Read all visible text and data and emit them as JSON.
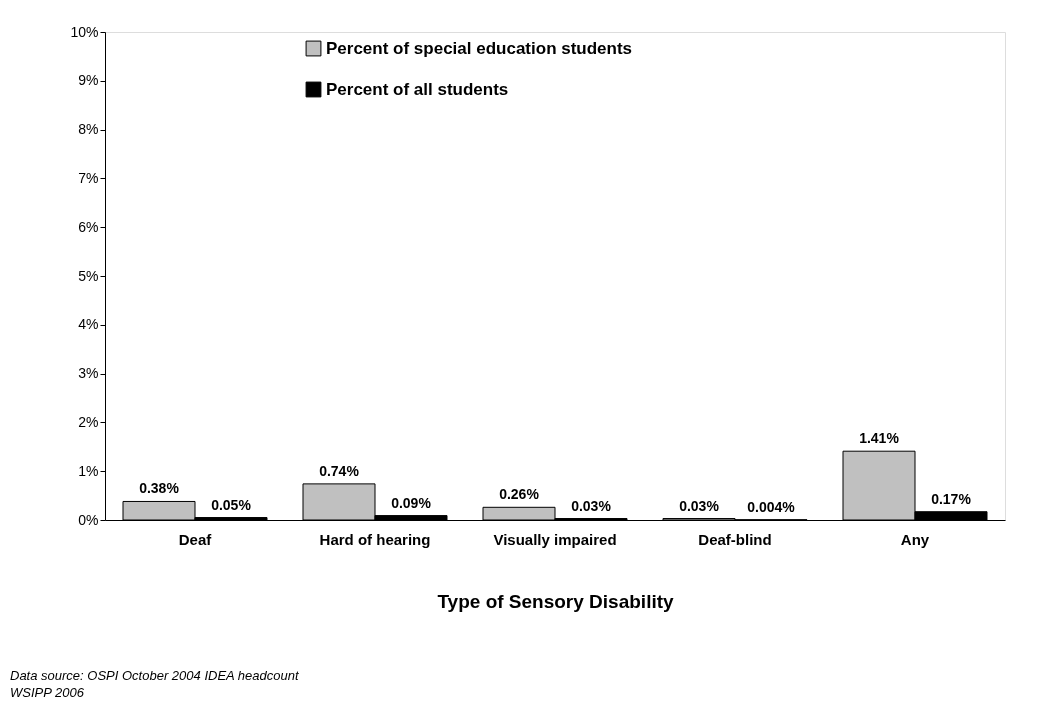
{
  "chart_data": {
    "type": "bar",
    "xlabel": "Type of Sensory Disability",
    "categories": [
      "Deaf",
      "Hard of hearing",
      "Visually impaired",
      "Deaf-blind",
      "Any"
    ],
    "series": [
      {
        "name": "Percent of special education students",
        "color": "#c0c0c0",
        "values": [
          0.38,
          0.74,
          0.26,
          0.03,
          1.41
        ],
        "value_labels": [
          "0.38%",
          "0.74%",
          "0.26%",
          "0.03%",
          "1.41%"
        ]
      },
      {
        "name": "Percent of all students",
        "color": "#000000",
        "values": [
          0.05,
          0.09,
          0.03,
          0.004,
          0.17
        ],
        "value_labels": [
          "0.05%",
          "0.09%",
          "0.03%",
          "0.004%",
          "0.17%"
        ]
      }
    ],
    "ylim": [
      0,
      10
    ],
    "yticks": [
      {
        "value": 0,
        "label": "0%"
      },
      {
        "value": 1,
        "label": "1%"
      },
      {
        "value": 2,
        "label": "2%"
      },
      {
        "value": 3,
        "label": "3%"
      },
      {
        "value": 4,
        "label": "4%"
      },
      {
        "value": 5,
        "label": "5%"
      },
      {
        "value": 6,
        "label": "6%"
      },
      {
        "value": 7,
        "label": "7%"
      },
      {
        "value": 8,
        "label": "8%"
      },
      {
        "value": 9,
        "label": "9%"
      },
      {
        "value": 10,
        "label": "10%"
      }
    ],
    "legend": "top",
    "annotations": [
      "Data source:  OSPI October 2004 IDEA headcount",
      "WSIPP 2006"
    ]
  }
}
